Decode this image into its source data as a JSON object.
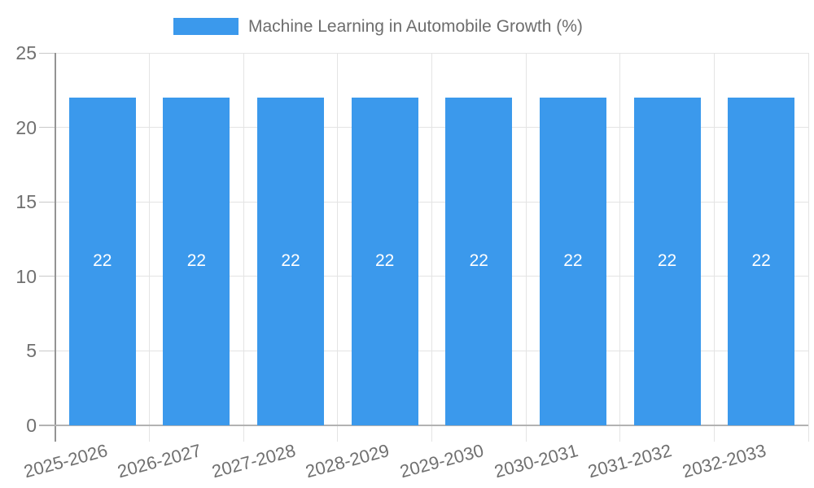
{
  "chart_data": {
    "type": "bar",
    "title": "Machine Learning in Automobile Growth (%)",
    "categories": [
      "2025-2026",
      "2026-2027",
      "2027-2028",
      "2028-2029",
      "2029-2030",
      "2030-2031",
      "2031-2032",
      "2032-2033"
    ],
    "values": [
      22,
      22,
      22,
      22,
      22,
      22,
      22,
      22
    ],
    "bar_value_labels": [
      "22",
      "22",
      "22",
      "22",
      "22",
      "22",
      "22",
      "22"
    ],
    "ylim": [
      0,
      25
    ],
    "y_ticks": [
      "0",
      "5",
      "10",
      "15",
      "20",
      "25"
    ],
    "xlabel": "",
    "ylabel": "",
    "grid": "on",
    "legend_position": "top",
    "x_label_rotation_deg": -15,
    "colors": {
      "bar": "#3b99ec",
      "bar_label": "#ffffff",
      "axis_text": "#707070",
      "title_text": "#6d6d6d",
      "gridline": "#e4e4e4",
      "axis_line": "#949494",
      "baseline": "#b2b2b2",
      "tick": "#c9c9c9",
      "background": "#ffffff"
    }
  }
}
